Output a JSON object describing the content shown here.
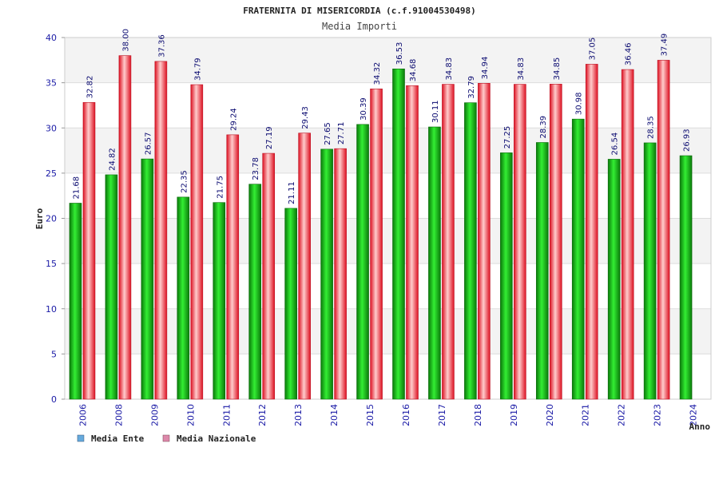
{
  "chart_data": {
    "type": "bar",
    "title": "FRATERNITA DI MISERICORDIA (c.f.91004530498)",
    "subtitle": "Media Importi",
    "ylabel": "Euro",
    "xlabel": "Anno",
    "ylim": [
      0,
      40
    ],
    "yticks": [
      0,
      5,
      10,
      15,
      20,
      25,
      30,
      35,
      40
    ],
    "ytick_labels": [
      "0",
      "5",
      "10",
      "15",
      "20",
      "25",
      "30",
      "35",
      "40"
    ],
    "categories": [
      "2006",
      "2008",
      "2009",
      "2010",
      "2011",
      "2012",
      "2013",
      "2014",
      "2015",
      "2016",
      "2017",
      "2018",
      "2019",
      "2020",
      "2021",
      "2022",
      "2023",
      "2024"
    ],
    "series": [
      {
        "name": "Media Ente",
        "color": "#11aa11",
        "values": [
          21.68,
          24.82,
          26.57,
          22.35,
          21.75,
          23.78,
          21.11,
          27.65,
          30.39,
          36.53,
          30.11,
          32.79,
          27.25,
          28.39,
          30.98,
          26.54,
          28.35,
          26.93
        ],
        "labels": [
          "21.68",
          "24.82",
          "26.57",
          "22.35",
          "21.75",
          "23.78",
          "21.11",
          "27.65",
          "30.39",
          "36.53",
          "30.11",
          "32.79",
          "27.25",
          "28.39",
          "30.98",
          "26.54",
          "28.35",
          "26.93"
        ]
      },
      {
        "name": "Media Nazionale",
        "color": "#ee2233",
        "values": [
          32.82,
          38.0,
          37.36,
          34.79,
          29.24,
          27.19,
          29.43,
          27.71,
          34.32,
          34.68,
          34.83,
          34.94,
          34.83,
          34.85,
          37.05,
          36.46,
          37.49,
          null
        ],
        "labels": [
          "32.82",
          "38.00",
          "37.36",
          "34.79",
          "29.24",
          "27.19",
          "29.43",
          "27.71",
          "34.32",
          "34.68",
          "34.83",
          "34.94",
          "34.83",
          "34.85",
          "37.05",
          "36.46",
          "37.49",
          null
        ]
      }
    ],
    "legend": {
      "position": "bottom-left",
      "items": [
        {
          "label": "Media Ente",
          "color": "#66aadd"
        },
        {
          "label": "Media Nazionale",
          "color": "#dd88aa"
        }
      ]
    },
    "grid": true
  }
}
